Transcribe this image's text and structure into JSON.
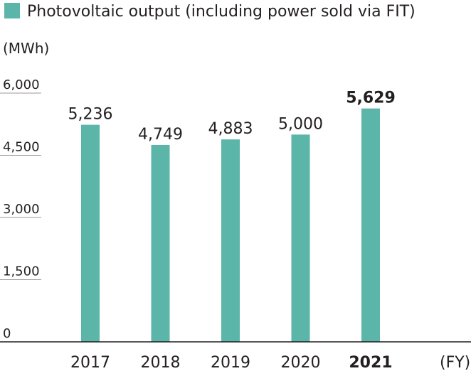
{
  "chart_data": {
    "type": "bar",
    "legend": "Photovoltaic output (including power sold via FIT)",
    "ylabel": "(MWh)",
    "xlabel": "(FY)",
    "categories": [
      "2017",
      "2018",
      "2019",
      "2020",
      "2021"
    ],
    "values": [
      5236,
      4749,
      4883,
      5000,
      5629
    ],
    "value_labels": [
      "5,236",
      "4,749",
      "4,883",
      "5,000",
      "5,629"
    ],
    "highlight": "2021",
    "ylim": [
      0,
      6000
    ],
    "yticks": [
      0,
      1500,
      3000,
      4500,
      6000
    ],
    "ytick_labels": [
      "0",
      "1,500",
      "3,000",
      "4,500",
      "6,000"
    ],
    "grid": false,
    "legend_position": "top-left",
    "colors": {
      "bar": "#5bb5a8",
      "text": "#231f20",
      "axis": "#231f20",
      "tick_line": "#999999"
    }
  }
}
